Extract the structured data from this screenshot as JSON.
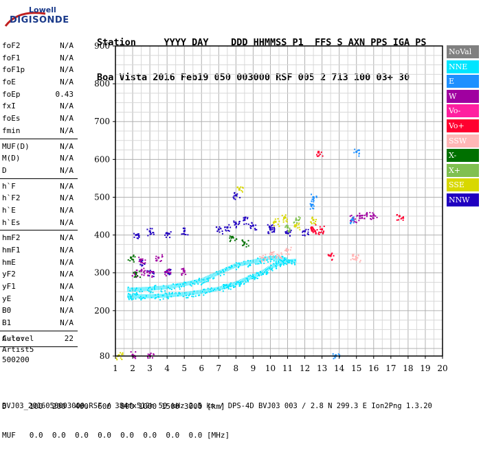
{
  "logo": {
    "line1": "Lowell",
    "line2": "DIGISONDE"
  },
  "header": {
    "labels": "Station     YYYY DAY    DDD HHMMSS P1  FFS S AXN PPS IGA PS",
    "values": "Boa Vista 2016 Feb19 050 003000 RSF 005 2 713 100 03+ 30"
  },
  "params": {
    "group1": [
      {
        "name": "foF2",
        "value": "N/A"
      },
      {
        "name": "foF1",
        "value": "N/A"
      },
      {
        "name": "foF1p",
        "value": "N/A"
      },
      {
        "name": "foE",
        "value": "N/A"
      },
      {
        "name": "foEp",
        "value": "0.43"
      },
      {
        "name": "fxI",
        "value": "N/A"
      },
      {
        "name": "foEs",
        "value": "N/A"
      },
      {
        "name": "fmin",
        "value": "N/A"
      }
    ],
    "group2": [
      {
        "name": "MUF(D)",
        "value": "N/A"
      },
      {
        "name": "M(D)",
        "value": "N/A"
      },
      {
        "name": "D",
        "value": "N/A"
      }
    ],
    "group3": [
      {
        "name": "h`F",
        "value": "N/A"
      },
      {
        "name": "h`F2",
        "value": "N/A"
      },
      {
        "name": "h`E",
        "value": "N/A"
      },
      {
        "name": "h`Es",
        "value": "N/A"
      }
    ],
    "group4": [
      {
        "name": "hmF2",
        "value": "N/A"
      },
      {
        "name": "hmF1",
        "value": "N/A"
      },
      {
        "name": "hmE",
        "value": "N/A"
      },
      {
        "name": "yF2",
        "value": "N/A"
      },
      {
        "name": "yF1",
        "value": "N/A"
      },
      {
        "name": "yE",
        "value": "N/A"
      },
      {
        "name": "B0",
        "value": "N/A"
      },
      {
        "name": "B1",
        "value": "N/A"
      }
    ],
    "group5": [
      {
        "name": "C-level",
        "value": "22"
      }
    ]
  },
  "auto": {
    "line1": "Auto:",
    "line2": "Artist5",
    "line3": "500200"
  },
  "legend": [
    {
      "label": "NoVal",
      "bg": "#808080",
      "fg": "#ffffff"
    },
    {
      "label": "NNE",
      "bg": "#00e5ff",
      "fg": "#ffffff"
    },
    {
      "label": "E",
      "bg": "#1e90ff",
      "fg": "#ffffff"
    },
    {
      "label": "W",
      "bg": "#a000a0",
      "fg": "#ffffff"
    },
    {
      "label": "Vo-",
      "bg": "#ff20a0",
      "fg": "#ffffff"
    },
    {
      "label": "Vo+",
      "bg": "#ff0030",
      "fg": "#ffffff"
    },
    {
      "label": "SSW",
      "bg": "#ffb6b6",
      "fg": "#ffffff"
    },
    {
      "label": "X-",
      "bg": "#007000",
      "fg": "#ffffff"
    },
    {
      "label": "X+",
      "bg": "#80c050",
      "fg": "#ffffff"
    },
    {
      "label": "SSE",
      "bg": "#d8d800",
      "fg": "#ffffff"
    },
    {
      "label": "NNW",
      "bg": "#2000c0",
      "fg": "#ffffff"
    }
  ],
  "bottom_table": {
    "d_row": "D     100  200  400  600  800 1000 1500 3000 [km]",
    "muf_row": "MUF   0.0  0.0  0.0  0.0  0.0  0.0  0.0  0.0 [MHz]"
  },
  "footer": "BVJ03_2016050003000.RSF / 384fx512h 50 kHz 2.5 km / DPS-4D BVJ03 003 / 2.8 N 299.3 E Ion2Png 1.3.20",
  "chart_data": {
    "type": "scatter",
    "title": "",
    "xlabel": "",
    "ylabel": "",
    "xlim": [
      1,
      20
    ],
    "ylim": [
      80,
      900
    ],
    "x_ticks": [
      "1",
      "2",
      "3",
      "4",
      "5",
      "6",
      "7",
      "8",
      "9",
      "10",
      "11",
      "12",
      "13",
      "14",
      "15",
      "16",
      "17",
      "18",
      "19",
      "20"
    ],
    "y_ticks": [
      "80",
      "200",
      "300",
      "400",
      "500",
      "600",
      "700",
      "800",
      "900"
    ],
    "grid": true,
    "legend_position": "right",
    "series": [
      {
        "name": "NNE",
        "color": "#00e5ff",
        "trace": [
          [
            1.7,
            240
          ],
          [
            2,
            238
          ],
          [
            3,
            238
          ],
          [
            4,
            240
          ],
          [
            5,
            244
          ],
          [
            6,
            250
          ],
          [
            7,
            258
          ],
          [
            7.5,
            265
          ],
          [
            8,
            272
          ],
          [
            8.5,
            282
          ],
          [
            9,
            290
          ],
          [
            9.5,
            300
          ],
          [
            10,
            315
          ],
          [
            10.5,
            325
          ],
          [
            11,
            330
          ],
          [
            11.5,
            332
          ]
        ]
      },
      {
        "name": "NNE_upper",
        "color": "#00e5ff",
        "trace": [
          [
            1.7,
            255
          ],
          [
            3,
            258
          ],
          [
            4,
            262
          ],
          [
            5,
            270
          ],
          [
            6,
            280
          ],
          [
            7,
            300
          ],
          [
            8,
            320
          ],
          [
            9,
            330
          ],
          [
            10,
            340
          ],
          [
            11,
            335
          ]
        ]
      },
      {
        "name": "NNW",
        "color": "#2000c0",
        "points": [
          [
            2.2,
            400
          ],
          [
            3,
            410
          ],
          [
            4,
            405
          ],
          [
            5,
            410
          ],
          [
            7,
            415
          ],
          [
            7.5,
            420
          ],
          [
            8,
            430
          ],
          [
            8.5,
            440
          ],
          [
            9,
            425
          ],
          [
            10,
            420
          ],
          [
            11,
            405
          ],
          [
            12,
            410
          ],
          [
            3,
            300
          ],
          [
            4,
            305
          ],
          [
            2.5,
            330
          ],
          [
            8,
            505
          ],
          [
            10,
            415
          ]
        ]
      },
      {
        "name": "W",
        "color": "#a000a0",
        "points": [
          [
            2.1,
            300
          ],
          [
            2.5,
            305
          ],
          [
            3,
            300
          ],
          [
            4,
            302
          ],
          [
            5,
            305
          ],
          [
            2.5,
            335
          ],
          [
            3.5,
            340
          ],
          [
            14.8,
            445
          ],
          [
            15.2,
            450
          ],
          [
            15.6,
            455
          ],
          [
            16,
            452
          ],
          [
            2,
            83
          ],
          [
            3,
            83
          ]
        ]
      },
      {
        "name": "Vo+",
        "color": "#ff0030",
        "points": [
          [
            12.4,
            420
          ],
          [
            12.6,
            410
          ],
          [
            13,
            415
          ],
          [
            13.5,
            345
          ],
          [
            12.8,
            620
          ],
          [
            17.5,
            450
          ]
        ]
      },
      {
        "name": "SSW",
        "color": "#ffb6b6",
        "points": [
          [
            9.5,
            340
          ],
          [
            10,
            350
          ],
          [
            10.5,
            345
          ],
          [
            11,
            360
          ],
          [
            14.8,
            345
          ],
          [
            15,
            340
          ]
        ]
      },
      {
        "name": "SSE",
        "color": "#d8d800",
        "points": [
          [
            8.2,
            520
          ],
          [
            10.3,
            435
          ],
          [
            10.8,
            445
          ],
          [
            12.5,
            440
          ],
          [
            11.5,
            425
          ],
          [
            1.2,
            82
          ]
        ]
      },
      {
        "name": "E",
        "color": "#1e90ff",
        "points": [
          [
            12.4,
            480
          ],
          [
            12.5,
            500
          ],
          [
            14.8,
            440
          ],
          [
            15,
            620
          ],
          [
            13.8,
            82
          ]
        ]
      },
      {
        "name": "X-",
        "color": "#007000",
        "points": [
          [
            7.8,
            395
          ],
          [
            8.5,
            380
          ],
          [
            2.2,
            300
          ],
          [
            1.9,
            340
          ]
        ]
      },
      {
        "name": "X+",
        "color": "#80c050",
        "points": [
          [
            11,
            420
          ],
          [
            11.5,
            440
          ]
        ]
      }
    ]
  }
}
